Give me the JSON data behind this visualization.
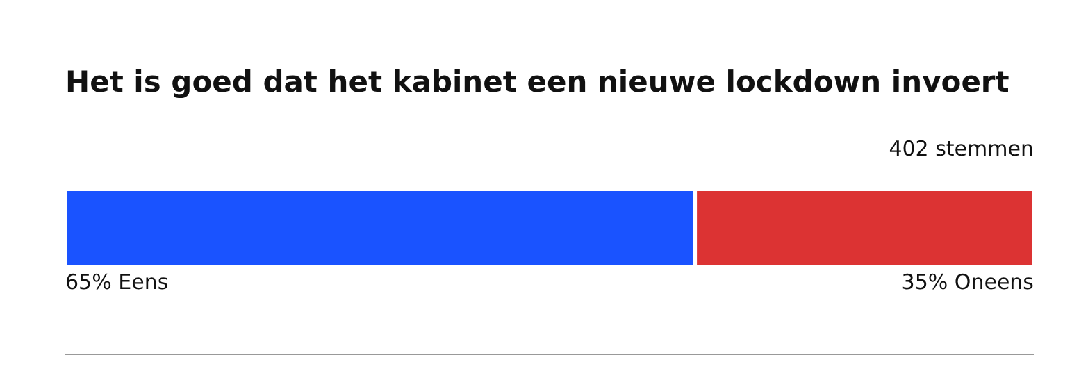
{
  "chart_data": {
    "type": "bar",
    "orientation": "horizontal",
    "stacked": true,
    "title": "Het is goed dat het kabinet een nieuwe lockdown invoert",
    "annotations": [
      "402 stemmen"
    ],
    "categories": [
      null
    ],
    "series": [
      {
        "name": "Eens",
        "color": "#1a53ff",
        "values": [
          65
        ],
        "value_labels": [
          "65%"
        ]
      },
      {
        "name": "Oneens",
        "color": "#dc3333",
        "values": [
          35
        ],
        "value_labels": [
          "35%"
        ]
      }
    ]
  }
}
